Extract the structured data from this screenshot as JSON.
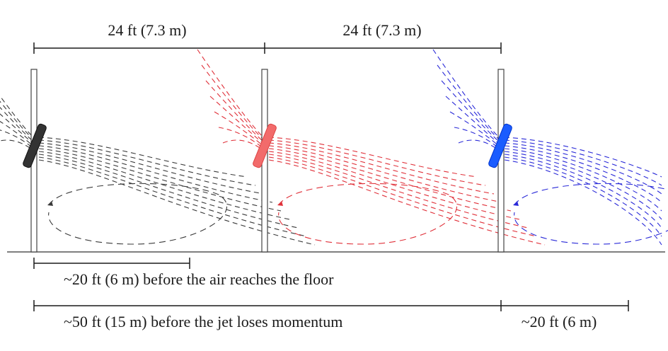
{
  "dimensions": {
    "top_left": "24 ft (7.3 m)",
    "top_right": "24 ft (7.3 m)",
    "floor_reach": "~20 ft (6 m) before the air reaches the floor",
    "momentum_loss": "~50 ft (15 m) before the jet loses momentum",
    "right_extra": "~20 ft (6 m)"
  },
  "fans": [
    {
      "id": "fan-1",
      "color": "#333333",
      "stream_color": "#3a3a3a"
    },
    {
      "id": "fan-2",
      "color": "#f26b6b",
      "stream_color": "#e0313a"
    },
    {
      "id": "fan-3",
      "color": "#1a5cff",
      "stream_color": "#2a2ad8"
    }
  ],
  "colors": {
    "line": "#1a1a1a",
    "column": "#444444",
    "floor": "#555555"
  }
}
